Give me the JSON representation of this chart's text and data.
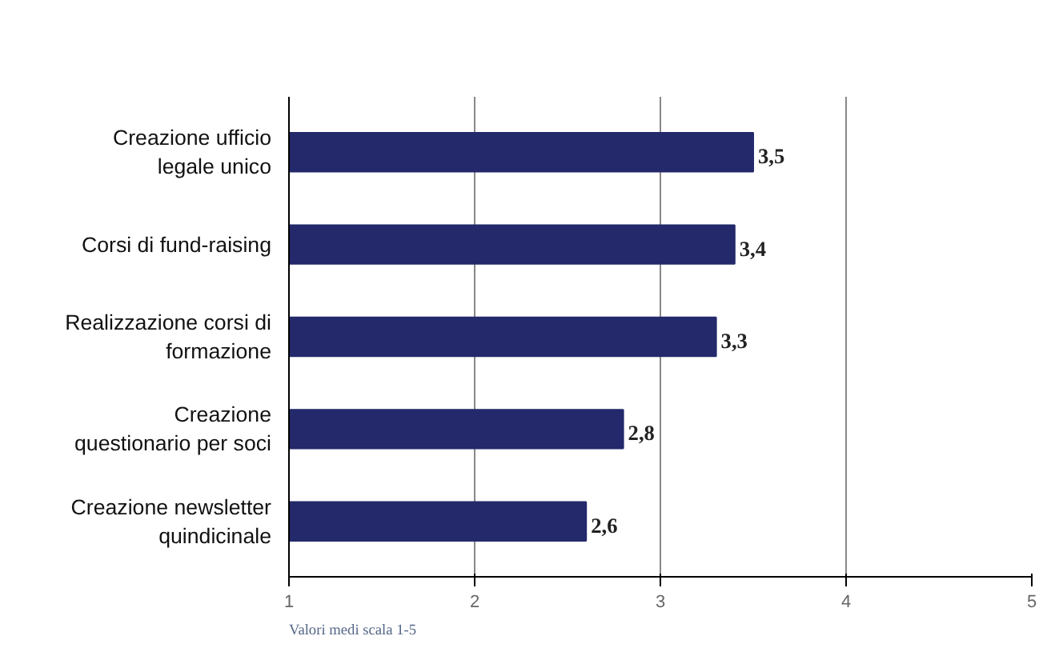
{
  "chart_data": {
    "type": "bar",
    "orientation": "horizontal",
    "categories": [
      "Creazione ufficio\nlegale unico",
      "Corsi di fund-raising",
      "Realizzazione corsi di\nformazione",
      "Creazione\nquestionario per soci",
      "Creazione newsletter\nquindicinale"
    ],
    "values": [
      3.5,
      3.4,
      3.3,
      2.8,
      2.6
    ],
    "value_labels": [
      "3,5",
      "3,4",
      "3,3",
      "2,8",
      "2,6"
    ],
    "color": "#23296b",
    "xlim": [
      1,
      5
    ],
    "xticks": [
      1,
      2,
      3,
      4,
      5
    ],
    "grid": "x",
    "annotations": [
      "Valori medi scala 1-5"
    ]
  }
}
